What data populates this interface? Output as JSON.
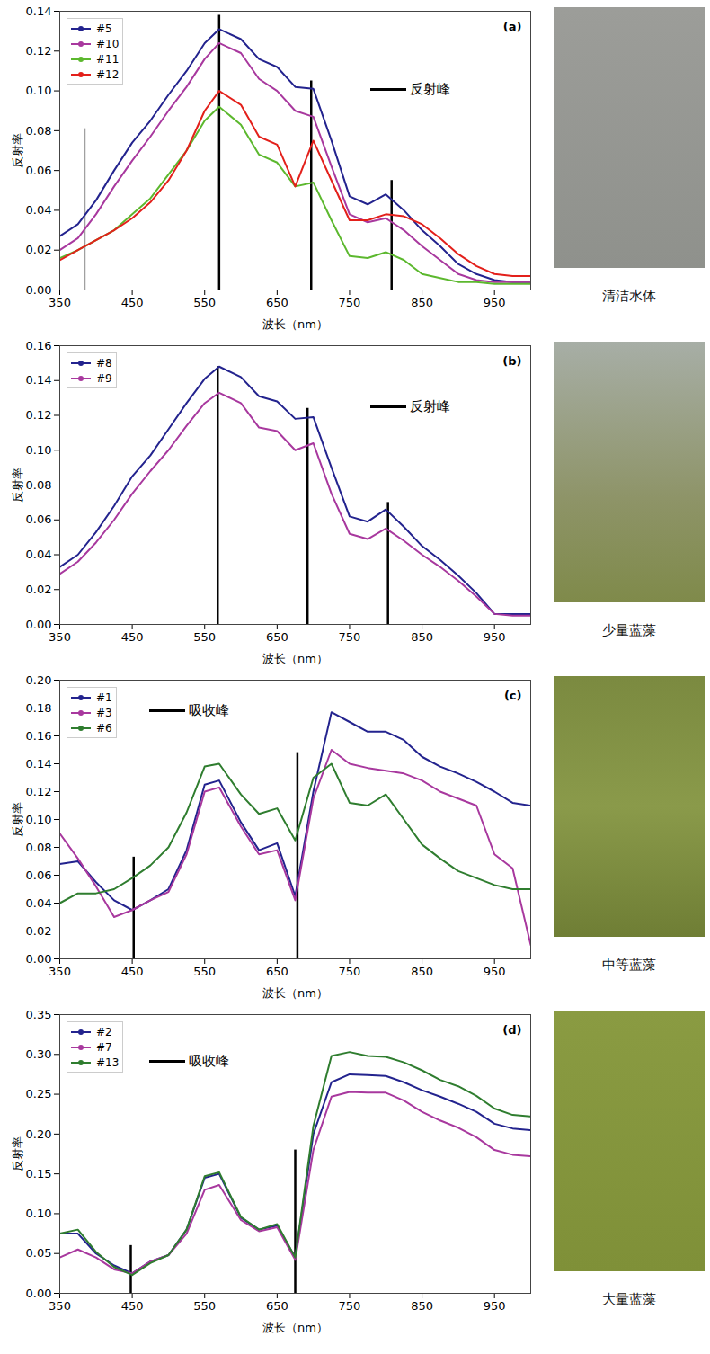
{
  "chart_data": [
    {
      "type": "line",
      "title": "(a)",
      "caption": "清洁水体",
      "x_label": "波长（nm）",
      "y_label": "反射率",
      "x": [
        350,
        375,
        400,
        425,
        450,
        475,
        500,
        525,
        550,
        570,
        600,
        625,
        650,
        675,
        700,
        725,
        750,
        775,
        800,
        825,
        850,
        875,
        900,
        925,
        950,
        975,
        1000
      ],
      "xlim": [
        350,
        1000
      ],
      "xticks": [
        350,
        450,
        550,
        650,
        750,
        850,
        950
      ],
      "ylim": [
        0,
        0.14
      ],
      "yticks": [
        {
          "value": 0,
          "label": "0.00"
        },
        {
          "value": 0.02,
          "label": "0.02"
        },
        {
          "value": 0.04,
          "label": "0.04"
        },
        {
          "value": 0.06,
          "label": "0.06"
        },
        {
          "value": 0.08,
          "label": "0.08"
        },
        {
          "value": 0.1,
          "label": "0.10"
        },
        {
          "value": 0.12,
          "label": "0.12"
        },
        {
          "value": 0.14,
          "label": "0.14"
        }
      ],
      "grid": false,
      "legend": "top-left",
      "series": [
        {
          "name": "#5",
          "color": "#23238e",
          "values": [
            0.027,
            0.033,
            0.045,
            0.06,
            0.074,
            0.085,
            0.098,
            0.11,
            0.124,
            0.131,
            0.126,
            0.116,
            0.112,
            0.102,
            0.101,
            0.075,
            0.047,
            0.043,
            0.048,
            0.04,
            0.03,
            0.022,
            0.013,
            0.008,
            0.005,
            0.004,
            0.004
          ]
        },
        {
          "name": "#10",
          "color": "#a8389e",
          "values": [
            0.02,
            0.026,
            0.038,
            0.052,
            0.065,
            0.077,
            0.09,
            0.102,
            0.116,
            0.124,
            0.119,
            0.106,
            0.1,
            0.09,
            0.087,
            0.062,
            0.038,
            0.034,
            0.036,
            0.03,
            0.022,
            0.015,
            0.008,
            0.005,
            0.004,
            0.004,
            0.004
          ]
        },
        {
          "name": "#11",
          "color": "#5cb82e",
          "values": [
            0.016,
            0.02,
            0.025,
            0.03,
            0.038,
            0.046,
            0.058,
            0.07,
            0.085,
            0.092,
            0.083,
            0.068,
            0.064,
            0.052,
            0.054,
            0.035,
            0.017,
            0.016,
            0.019,
            0.015,
            0.008,
            0.006,
            0.004,
            0.004,
            0.003,
            0.003,
            0.003
          ]
        },
        {
          "name": "#12",
          "color": "#e3201b",
          "values": [
            0.015,
            0.02,
            0.025,
            0.03,
            0.036,
            0.044,
            0.055,
            0.07,
            0.09,
            0.1,
            0.093,
            0.077,
            0.073,
            0.052,
            0.075,
            0.055,
            0.035,
            0.035,
            0.038,
            0.037,
            0.033,
            0.026,
            0.018,
            0.012,
            0.008,
            0.007,
            0.007
          ]
        }
      ],
      "annotations": [
        {
          "text": "反射峰",
          "lines": [
            {
              "x": 385,
              "y": 0.081,
              "color": "#888888"
            },
            {
              "x": 570,
              "y": 0.138
            },
            {
              "x": 697,
              "y": 0.105
            },
            {
              "x": 808,
              "y": 0.055
            }
          ]
        }
      ]
    },
    {
      "type": "line",
      "title": "(b)",
      "caption": "少量蓝藻",
      "x_label": "波长（nm）",
      "y_label": "反射率",
      "x": [
        350,
        375,
        400,
        425,
        450,
        475,
        500,
        525,
        550,
        570,
        600,
        625,
        650,
        675,
        700,
        725,
        750,
        775,
        800,
        825,
        850,
        875,
        900,
        925,
        950,
        975,
        1000
      ],
      "xlim": [
        350,
        1000
      ],
      "xticks": [
        350,
        450,
        550,
        650,
        750,
        850,
        950
      ],
      "ylim": [
        0,
        0.16
      ],
      "yticks": [
        {
          "value": 0,
          "label": "0.00"
        },
        {
          "value": 0.02,
          "label": "0.02"
        },
        {
          "value": 0.04,
          "label": "0.04"
        },
        {
          "value": 0.06,
          "label": "0.06"
        },
        {
          "value": 0.08,
          "label": "0.08"
        },
        {
          "value": 0.1,
          "label": "0.10"
        },
        {
          "value": 0.12,
          "label": "0.12"
        },
        {
          "value": 0.14,
          "label": "0.14"
        },
        {
          "value": 0.16,
          "label": "0.16"
        }
      ],
      "grid": false,
      "legend": "top-left",
      "series": [
        {
          "name": "#8",
          "color": "#23238e",
          "values": [
            0.033,
            0.04,
            0.053,
            0.068,
            0.085,
            0.097,
            0.112,
            0.127,
            0.141,
            0.148,
            0.142,
            0.131,
            0.128,
            0.118,
            0.119,
            0.09,
            0.062,
            0.059,
            0.066,
            0.056,
            0.045,
            0.037,
            0.028,
            0.018,
            0.006,
            0.006,
            0.006
          ]
        },
        {
          "name": "#9",
          "color": "#a8389e",
          "values": [
            0.029,
            0.036,
            0.047,
            0.06,
            0.075,
            0.088,
            0.1,
            0.114,
            0.127,
            0.133,
            0.127,
            0.113,
            0.111,
            0.1,
            0.104,
            0.075,
            0.052,
            0.049,
            0.055,
            0.048,
            0.04,
            0.033,
            0.025,
            0.016,
            0.006,
            0.005,
            0.005
          ]
        }
      ],
      "annotations": [
        {
          "text": "反射峰",
          "lines": [
            {
              "x": 568,
              "y": 0.148
            },
            {
              "x": 692,
              "y": 0.124
            },
            {
              "x": 803,
              "y": 0.07
            }
          ]
        }
      ]
    },
    {
      "type": "line",
      "title": "(c)",
      "caption": "中等蓝藻",
      "x_label": "波长（nm）",
      "y_label": "反射率",
      "x": [
        350,
        375,
        400,
        425,
        450,
        475,
        500,
        525,
        550,
        570,
        600,
        625,
        650,
        675,
        700,
        725,
        750,
        775,
        800,
        825,
        850,
        875,
        900,
        925,
        950,
        975,
        1000
      ],
      "xlim": [
        350,
        1000
      ],
      "xticks": [
        350,
        450,
        550,
        650,
        750,
        850,
        950
      ],
      "ylim": [
        0,
        0.2
      ],
      "yticks": [
        {
          "value": 0,
          "label": "0.00"
        },
        {
          "value": 0.02,
          "label": "0.02"
        },
        {
          "value": 0.04,
          "label": "0.04"
        },
        {
          "value": 0.06,
          "label": "0.06"
        },
        {
          "value": 0.08,
          "label": "0.08"
        },
        {
          "value": 0.1,
          "label": "0.10"
        },
        {
          "value": 0.12,
          "label": "0.12"
        },
        {
          "value": 0.14,
          "label": "0.14"
        },
        {
          "value": 0.16,
          "label": "0.16"
        },
        {
          "value": 0.18,
          "label": "0.18"
        },
        {
          "value": 0.2,
          "label": "0.20"
        }
      ],
      "grid": false,
      "legend": "top-left",
      "series": [
        {
          "name": "#1",
          "color": "#23238e",
          "values": [
            0.068,
            0.07,
            0.055,
            0.042,
            0.035,
            0.042,
            0.05,
            0.078,
            0.125,
            0.128,
            0.098,
            0.078,
            0.083,
            0.045,
            0.12,
            0.177,
            0.17,
            0.163,
            0.163,
            0.157,
            0.145,
            0.138,
            0.133,
            0.127,
            0.12,
            0.112,
            0.11
          ]
        },
        {
          "name": "#3",
          "color": "#a8389e",
          "values": [
            0.09,
            0.072,
            0.052,
            0.03,
            0.035,
            0.042,
            0.048,
            0.075,
            0.12,
            0.123,
            0.095,
            0.075,
            0.078,
            0.042,
            0.115,
            0.15,
            0.14,
            0.137,
            0.135,
            0.133,
            0.128,
            0.12,
            0.115,
            0.11,
            0.075,
            0.065,
            0.01
          ]
        },
        {
          "name": "#6",
          "color": "#2f7d2f",
          "values": [
            0.04,
            0.047,
            0.047,
            0.05,
            0.058,
            0.067,
            0.08,
            0.105,
            0.138,
            0.14,
            0.118,
            0.104,
            0.108,
            0.085,
            0.13,
            0.14,
            0.112,
            0.11,
            0.118,
            0.1,
            0.082,
            0.072,
            0.063,
            0.058,
            0.053,
            0.05,
            0.05
          ]
        }
      ],
      "annotations": [
        {
          "text": "吸收峰",
          "lines": [
            {
              "x": 452,
              "y": 0.073
            },
            {
              "x": 678,
              "y": 0.148
            }
          ]
        }
      ]
    },
    {
      "type": "line",
      "title": "(d)",
      "caption": "大量蓝藻",
      "x_label": "波长（nm）",
      "y_label": "反射率",
      "x": [
        350,
        375,
        400,
        425,
        450,
        475,
        500,
        525,
        550,
        570,
        600,
        625,
        650,
        675,
        700,
        725,
        750,
        775,
        800,
        825,
        850,
        875,
        900,
        925,
        950,
        975,
        1000
      ],
      "xlim": [
        350,
        1000
      ],
      "xticks": [
        350,
        450,
        550,
        650,
        750,
        850,
        950
      ],
      "ylim": [
        0,
        0.35
      ],
      "yticks": [
        {
          "value": 0,
          "label": "0.00"
        },
        {
          "value": 0.05,
          "label": "0.05"
        },
        {
          "value": 0.1,
          "label": "0.10"
        },
        {
          "value": 0.15,
          "label": "0.15"
        },
        {
          "value": 0.2,
          "label": "0.20"
        },
        {
          "value": 0.25,
          "label": "0.25"
        },
        {
          "value": 0.3,
          "label": "0.30"
        },
        {
          "value": 0.35,
          "label": "0.35"
        }
      ],
      "grid": false,
      "legend": "top-left",
      "series": [
        {
          "name": "#2",
          "color": "#23238e",
          "values": [
            0.075,
            0.075,
            0.05,
            0.035,
            0.025,
            0.04,
            0.048,
            0.08,
            0.145,
            0.15,
            0.095,
            0.08,
            0.085,
            0.045,
            0.2,
            0.265,
            0.275,
            0.274,
            0.273,
            0.265,
            0.255,
            0.247,
            0.238,
            0.228,
            0.213,
            0.207,
            0.205
          ]
        },
        {
          "name": "#7",
          "color": "#a8389e",
          "values": [
            0.045,
            0.055,
            0.045,
            0.03,
            0.025,
            0.04,
            0.048,
            0.075,
            0.13,
            0.136,
            0.092,
            0.078,
            0.083,
            0.042,
            0.18,
            0.247,
            0.253,
            0.252,
            0.252,
            0.242,
            0.228,
            0.217,
            0.208,
            0.196,
            0.18,
            0.174,
            0.172
          ]
        },
        {
          "name": "#13",
          "color": "#2f7d2f",
          "values": [
            0.075,
            0.08,
            0.052,
            0.033,
            0.023,
            0.038,
            0.048,
            0.08,
            0.147,
            0.152,
            0.096,
            0.08,
            0.087,
            0.045,
            0.21,
            0.298,
            0.303,
            0.298,
            0.297,
            0.29,
            0.28,
            0.268,
            0.26,
            0.248,
            0.232,
            0.224,
            0.222
          ]
        }
      ],
      "annotations": [
        {
          "text": "吸收峰",
          "lines": [
            {
              "x": 448,
              "y": 0.06
            },
            {
              "x": 675,
              "y": 0.18
            }
          ]
        }
      ]
    }
  ]
}
